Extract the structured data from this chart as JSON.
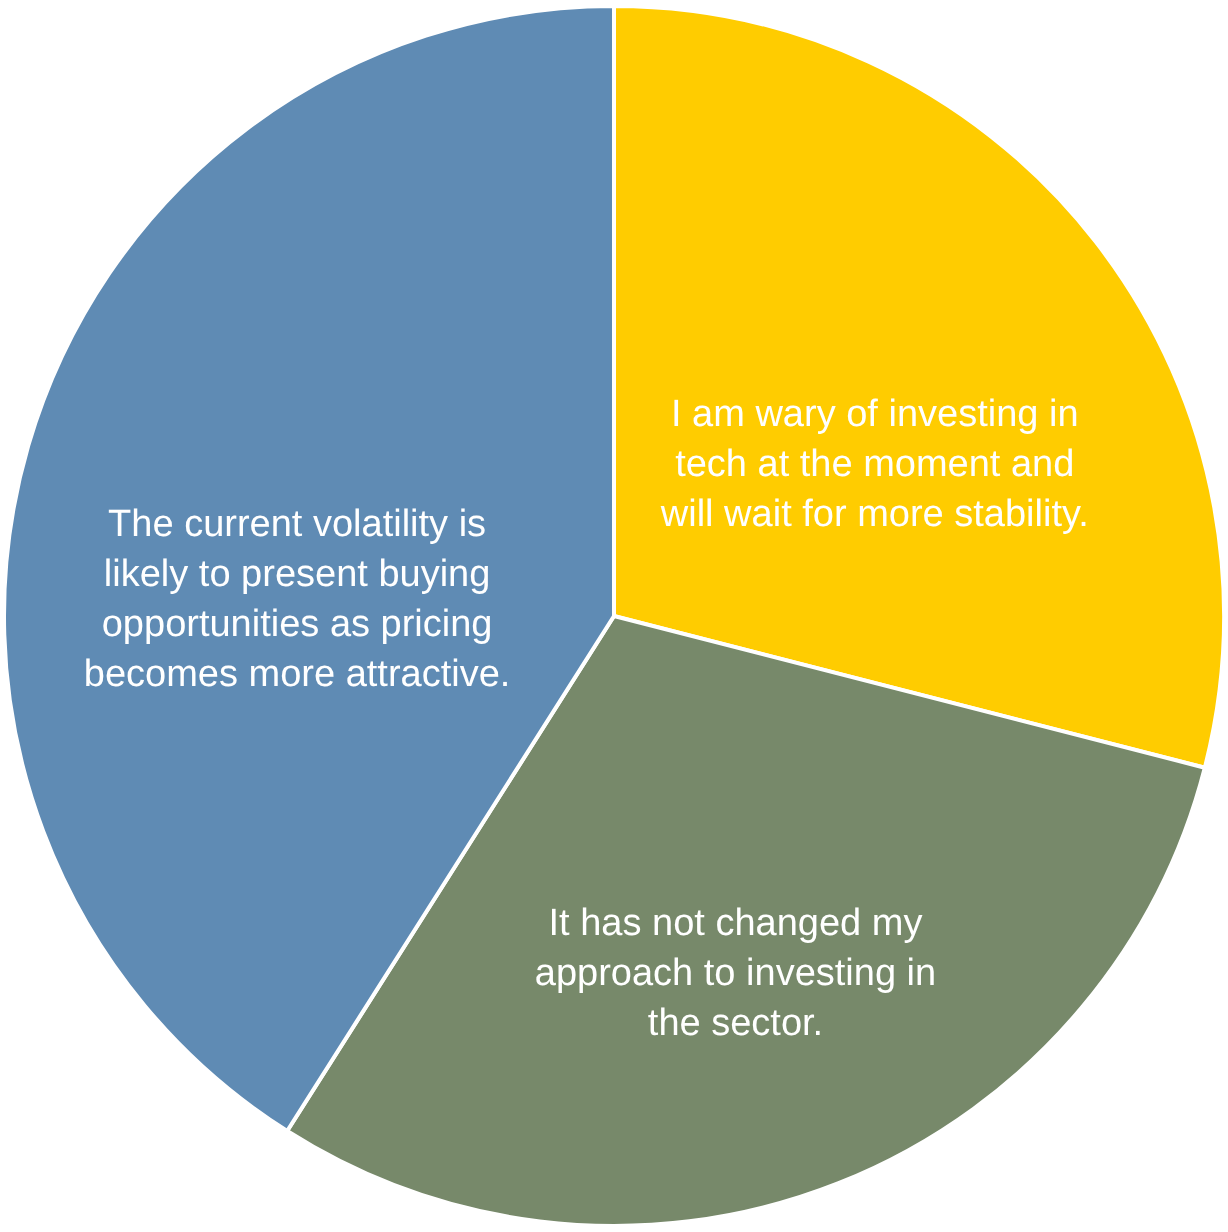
{
  "chart_data": {
    "type": "pie",
    "categories": [
      "I am wary of investing in tech at the moment and will wait for more stability.",
      "It has not changed my approach to investing in the sector.",
      "The current volatility is likely to present buying opportunities as pricing becomes more attractive."
    ],
    "values": [
      29,
      30,
      41
    ],
    "colors": [
      "#ffcc00",
      "#77896a",
      "#5f8bb4"
    ]
  }
}
